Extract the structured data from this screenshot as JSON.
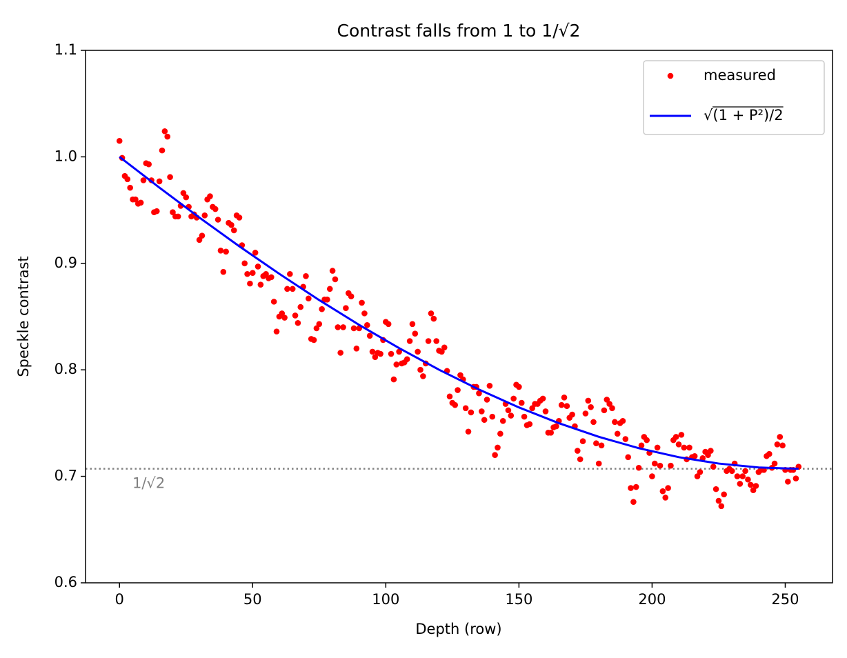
{
  "chart_data": {
    "type": "scatter",
    "title": "Contrast falls from 1 to 1/√2",
    "xlabel": "Depth (row)",
    "ylabel": "Speckle contrast",
    "xlim": [
      -12.75,
      267.75
    ],
    "ylim": [
      0.6,
      1.1
    ],
    "xticks": [
      0,
      50,
      100,
      150,
      200,
      250
    ],
    "yticks": [
      0.6,
      0.7,
      0.8,
      0.9,
      {
        "value": 1,
        "label": "1.0"
      },
      1.1
    ],
    "legend": "upper right",
    "hline": {
      "value": 0.7071,
      "label": "1/√2",
      "color": "gray"
    },
    "series": [
      {
        "name": "measured",
        "type": "scatter",
        "color": "red",
        "x": [
          0,
          1,
          2,
          3,
          4,
          5,
          6,
          7,
          8,
          9,
          10,
          11,
          12,
          13,
          14,
          15,
          16,
          17,
          18,
          19,
          20,
          21,
          22,
          23,
          24,
          25,
          26,
          27,
          28,
          29,
          30,
          31,
          32,
          33,
          34,
          35,
          36,
          37,
          38,
          39,
          40,
          41,
          42,
          43,
          44,
          45,
          46,
          47,
          48,
          49,
          50,
          51,
          52,
          53,
          54,
          55,
          56,
          57,
          58,
          59,
          60,
          61,
          62,
          63,
          64,
          65,
          66,
          67,
          68,
          69,
          70,
          71,
          72,
          73,
          74,
          75,
          76,
          77,
          78,
          79,
          80,
          81,
          82,
          83,
          84,
          85,
          86,
          87,
          88,
          89,
          90,
          91,
          92,
          93,
          94,
          95,
          96,
          97,
          98,
          99,
          100,
          101,
          102,
          103,
          104,
          105,
          106,
          107,
          108,
          109,
          110,
          111,
          112,
          113,
          114,
          115,
          116,
          117,
          118,
          119,
          120,
          121,
          122,
          123,
          124,
          125,
          126,
          127,
          128,
          129,
          130,
          131,
          132,
          133,
          134,
          135,
          136,
          137,
          138,
          139,
          140,
          141,
          142,
          143,
          144,
          145,
          146,
          147,
          148,
          149,
          150,
          151,
          152,
          153,
          154,
          155,
          156,
          157,
          158,
          159,
          160,
          161,
          162,
          163,
          164,
          165,
          166,
          167,
          168,
          169,
          170,
          171,
          172,
          173,
          174,
          175,
          176,
          177,
          178,
          179,
          180,
          181,
          182,
          183,
          184,
          185,
          186,
          187,
          188,
          189,
          190,
          191,
          192,
          193,
          194,
          195,
          196,
          197,
          198,
          199,
          200,
          201,
          202,
          203,
          204,
          205,
          206,
          207,
          208,
          209,
          210,
          211,
          212,
          213,
          214,
          215,
          216,
          217,
          218,
          219,
          220,
          221,
          222,
          223,
          224,
          225,
          226,
          227,
          228,
          229,
          230,
          231,
          232,
          233,
          234,
          235,
          236,
          237,
          238,
          239,
          240,
          241,
          242,
          243,
          244,
          245,
          246,
          247,
          248,
          249,
          250,
          251,
          252,
          253,
          254,
          255
        ],
        "values": [
          1.015,
          0.999,
          0.982,
          0.979,
          0.971,
          0.96,
          0.96,
          0.956,
          0.957,
          0.978,
          0.994,
          0.993,
          0.978,
          0.948,
          0.949,
          0.977,
          1.006,
          1.024,
          1.019,
          0.981,
          0.948,
          0.944,
          0.944,
          0.954,
          0.966,
          0.962,
          0.953,
          0.944,
          0.946,
          0.943,
          0.922,
          0.926,
          0.945,
          0.96,
          0.963,
          0.953,
          0.951,
          0.941,
          0.912,
          0.892,
          0.911,
          0.938,
          0.936,
          0.931,
          0.945,
          0.943,
          0.917,
          0.9,
          0.89,
          0.881,
          0.891,
          0.91,
          0.897,
          0.88,
          0.888,
          0.89,
          0.886,
          0.887,
          0.864,
          0.836,
          0.85,
          0.853,
          0.849,
          0.876,
          0.89,
          0.876,
          0.851,
          0.844,
          0.859,
          0.878,
          0.888,
          0.867,
          0.829,
          0.828,
          0.839,
          0.843,
          0.857,
          0.866,
          0.866,
          0.876,
          0.893,
          0.885,
          0.84,
          0.816,
          0.84,
          0.858,
          0.872,
          0.869,
          0.839,
          0.82,
          0.839,
          0.863,
          0.853,
          0.842,
          0.832,
          0.817,
          0.812,
          0.816,
          0.815,
          0.828,
          0.845,
          0.843,
          0.815,
          0.791,
          0.805,
          0.817,
          0.806,
          0.807,
          0.81,
          0.827,
          0.843,
          0.834,
          0.817,
          0.8,
          0.794,
          0.806,
          0.827,
          0.853,
          0.848,
          0.827,
          0.818,
          0.817,
          0.821,
          0.799,
          0.775,
          0.769,
          0.767,
          0.781,
          0.795,
          0.791,
          0.764,
          0.742,
          0.76,
          0.784,
          0.784,
          0.778,
          0.761,
          0.753,
          0.772,
          0.785,
          0.756,
          0.72,
          0.727,
          0.74,
          0.752,
          0.768,
          0.762,
          0.757,
          0.773,
          0.786,
          0.784,
          0.769,
          0.756,
          0.748,
          0.749,
          0.764,
          0.768,
          0.768,
          0.771,
          0.773,
          0.761,
          0.741,
          0.741,
          0.746,
          0.747,
          0.752,
          0.767,
          0.774,
          0.766,
          0.755,
          0.758,
          0.747,
          0.724,
          0.716,
          0.733,
          0.759,
          0.771,
          0.765,
          0.751,
          0.731,
          0.712,
          0.729,
          0.762,
          0.772,
          0.768,
          0.764,
          0.751,
          0.74,
          0.75,
          0.752,
          0.735,
          0.718,
          0.689,
          0.676,
          0.69,
          0.708,
          0.729,
          0.737,
          0.734,
          0.722,
          0.7,
          0.712,
          0.727,
          0.71,
          0.686,
          0.68,
          0.689,
          0.71,
          0.734,
          0.737,
          0.73,
          0.739,
          0.727,
          0.716,
          0.727,
          0.718,
          0.719,
          0.7,
          0.704,
          0.717,
          0.723,
          0.72,
          0.724,
          0.709,
          0.688,
          0.677,
          0.672,
          0.683,
          0.705,
          0.707,
          0.705,
          0.712,
          0.7,
          0.693,
          0.7,
          0.705,
          0.697,
          0.692,
          0.687,
          0.691,
          0.704,
          0.706,
          0.706,
          0.719,
          0.721,
          0.708,
          0.712,
          0.73,
          0.737,
          0.729,
          0.706,
          0.695,
          0.706,
          0.706,
          0.698,
          0.709
        ]
      },
      {
        "name": "√(1 + P²)/2",
        "type": "line",
        "color": "blue",
        "x": [
          0,
          15,
          30,
          45,
          60,
          75,
          90,
          105,
          120,
          135,
          150,
          165,
          180,
          195,
          210,
          225,
          240,
          255
        ],
        "values": [
          1.0,
          0.9711,
          0.943,
          0.916,
          0.8902,
          0.8655,
          0.8422,
          0.8204,
          0.8001,
          0.7815,
          0.7647,
          0.7499,
          0.7371,
          0.7264,
          0.718,
          0.712,
          0.7083,
          0.7071
        ]
      }
    ]
  }
}
